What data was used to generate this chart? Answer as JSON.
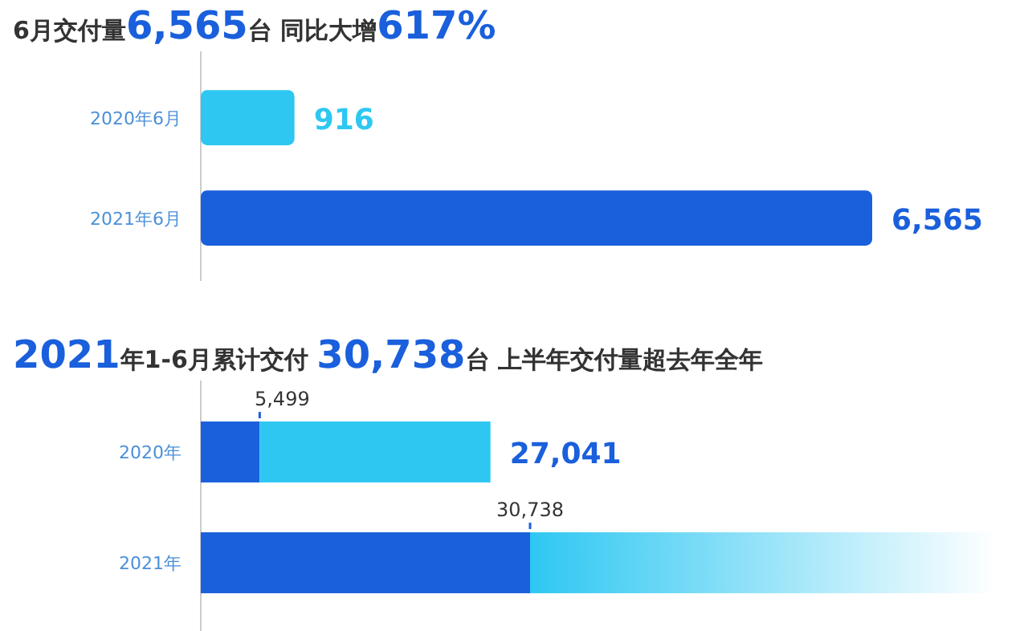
{
  "chart_data": [
    {
      "type": "bar",
      "orientation": "horizontal",
      "title": "6月交付量6,565台 同比大增617%",
      "categories": [
        "2020年6月",
        "2021年6月"
      ],
      "values": [
        916,
        6565
      ],
      "value_labels": [
        "916",
        "6,565"
      ],
      "colors": [
        "#2ec7f2",
        "#1a5fdc"
      ]
    },
    {
      "type": "bar",
      "orientation": "horizontal",
      "stacked": true,
      "title": "2021年1-6月累计交付 30,738台 上半年交付量超去年全年",
      "categories": [
        "2020年",
        "2021年"
      ],
      "series": [
        {
          "color": "#1a5fdc",
          "values": [
            5499,
            30738
          ],
          "value_labels": [
            "5,499",
            "30,738"
          ]
        },
        {
          "color": "#2ec7f2",
          "values": [
            21542,
            null
          ]
        }
      ],
      "totals": [
        "27,041",
        null
      ]
    }
  ]
}
